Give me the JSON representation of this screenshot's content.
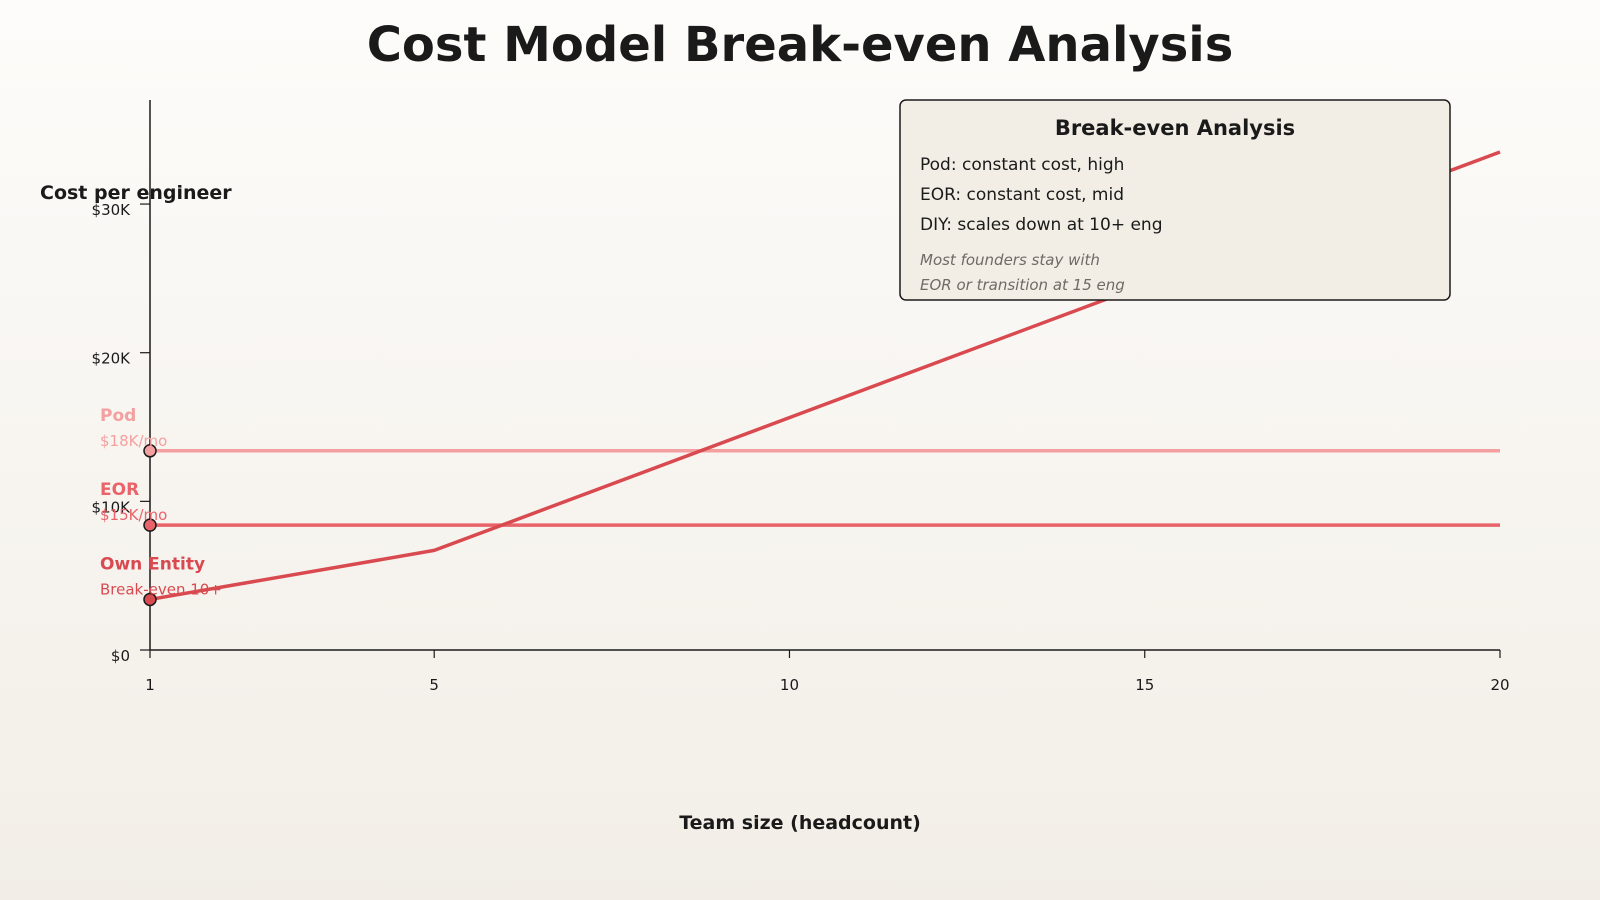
{
  "chart_data": {
    "type": "line",
    "title": "Cost Model Break-even Analysis",
    "xlabel": "Team size (headcount)",
    "ylabel": "Cost per engineer",
    "xlim": [
      1,
      20
    ],
    "ylim": [
      0,
      37000
    ],
    "x_ticks": [
      1,
      5,
      10,
      15,
      20
    ],
    "y_ticks": [
      {
        "value": 0,
        "label": "$0"
      },
      {
        "value": 10000,
        "label": "$10K"
      },
      {
        "value": 20000,
        "label": "$20K"
      },
      {
        "value": 30000,
        "label": "$30K"
      }
    ],
    "grid": false,
    "legend_position": "top-right",
    "series": [
      {
        "name": "Pod",
        "note": "$18K/mo",
        "color": "#f4a0a0",
        "x": [
          1,
          20
        ],
        "values": [
          13400,
          13400
        ]
      },
      {
        "name": "EOR",
        "note": "$15K/mo",
        "color": "#e9646a",
        "x": [
          1,
          20
        ],
        "values": [
          8400,
          8400
        ]
      },
      {
        "name": "Own Entity",
        "note": "Break-even 10+",
        "color": "#d94a50",
        "x": [
          1,
          5,
          20
        ],
        "values": [
          3400,
          6700,
          33500
        ]
      }
    ]
  },
  "legend_box": {
    "heading": "Break-even Analysis",
    "lines": [
      "Pod: constant cost, high",
      "EOR: constant cost, mid",
      "DIY: scales down at 10+ eng"
    ],
    "notes": [
      "Most founders stay with",
      "EOR or transition at 15 eng"
    ]
  }
}
